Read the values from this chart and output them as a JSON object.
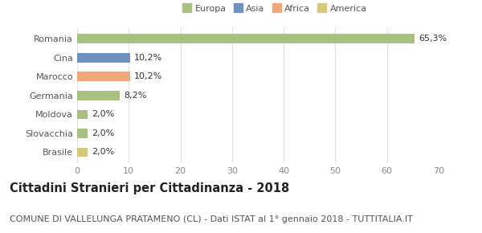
{
  "categories": [
    "Brasile",
    "Slovacchia",
    "Moldova",
    "Germania",
    "Marocco",
    "Cina",
    "Romania"
  ],
  "values": [
    2.0,
    2.0,
    2.0,
    8.2,
    10.2,
    10.2,
    65.3
  ],
  "colors": [
    "#d4c87a",
    "#a8c080",
    "#a8c080",
    "#a8c080",
    "#f0a878",
    "#7090c0",
    "#a8c080"
  ],
  "labels": [
    "2,0%",
    "2,0%",
    "2,0%",
    "8,2%",
    "10,2%",
    "10,2%",
    "65,3%"
  ],
  "xlim": [
    0,
    70
  ],
  "xticks": [
    0,
    10,
    20,
    30,
    40,
    50,
    60,
    70
  ],
  "legend_items": [
    {
      "label": "Europa",
      "color": "#a8c080"
    },
    {
      "label": "Asia",
      "color": "#7090c0"
    },
    {
      "label": "Africa",
      "color": "#f0a878"
    },
    {
      "label": "America",
      "color": "#d4c87a"
    }
  ],
  "title": "Cittadini Stranieri per Cittadinanza - 2018",
  "subtitle": "COMUNE DI VALLELUNGA PRATAMENO (CL) - Dati ISTAT al 1° gennaio 2018 - TUTTITALIA.IT",
  "background_color": "#ffffff",
  "grid_color": "#e0e0e0",
  "bar_height": 0.5,
  "label_fontsize": 8,
  "title_fontsize": 10.5,
  "subtitle_fontsize": 8,
  "ytick_fontsize": 8,
  "xtick_fontsize": 8
}
